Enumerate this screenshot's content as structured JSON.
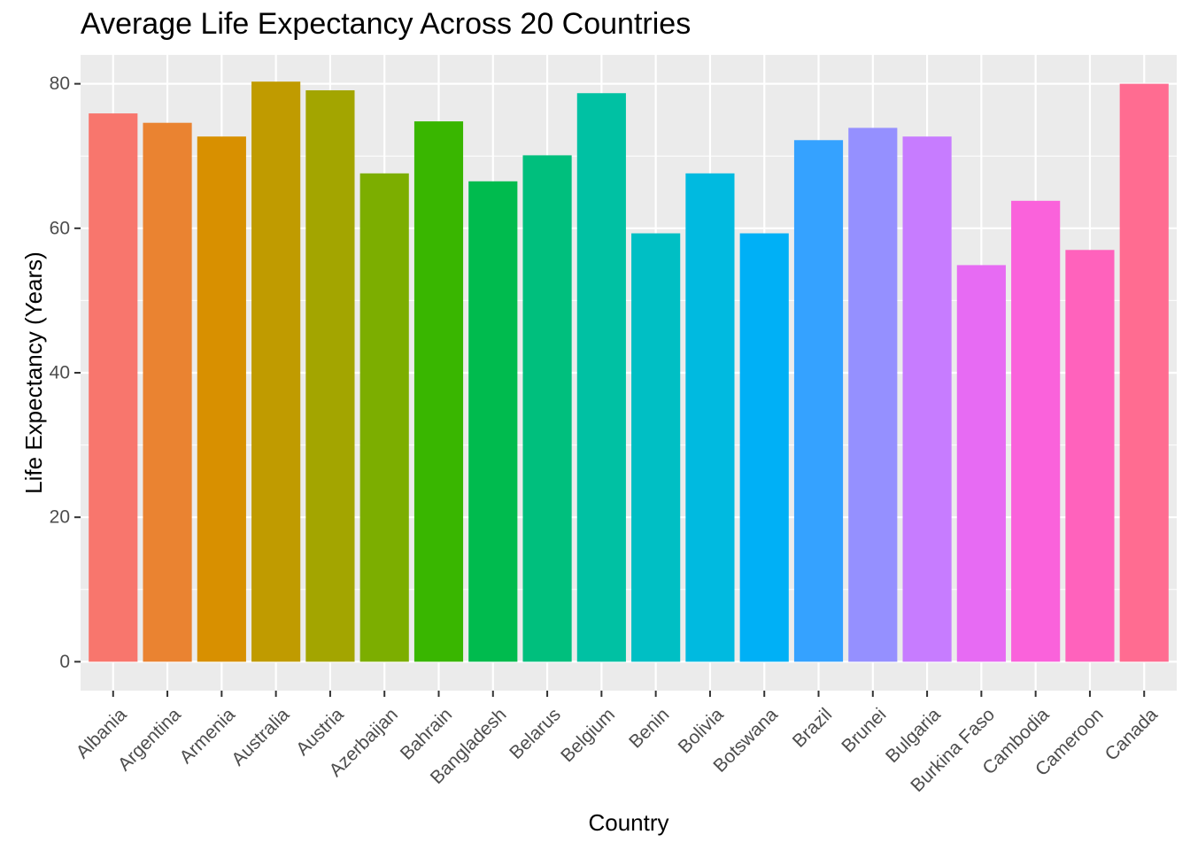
{
  "chart_data": {
    "type": "bar",
    "title": "Average Life Expectancy Across 20 Countries",
    "xlabel": "Country",
    "ylabel": "Life Expectancy (Years)",
    "ylim": [
      -4,
      84
    ],
    "yticks": [
      0,
      20,
      40,
      60,
      80
    ],
    "y_minor_ticks": [
      10,
      30,
      50,
      70
    ],
    "grid": true,
    "legend": "none",
    "background_color": "#ebebeb",
    "grid_color": "#ffffff",
    "categories": [
      "Albania",
      "Argentina",
      "Armenia",
      "Australia",
      "Austria",
      "Azerbaijan",
      "Bahrain",
      "Bangladesh",
      "Belarus",
      "Belgium",
      "Benin",
      "Bolivia",
      "Botswana",
      "Brazil",
      "Brunei",
      "Bulgaria",
      "Burkina Faso",
      "Cambodia",
      "Cameroon",
      "Canada"
    ],
    "values": [
      75.9,
      74.6,
      72.7,
      80.3,
      79.1,
      67.6,
      74.8,
      66.5,
      70.1,
      78.7,
      59.3,
      67.6,
      59.3,
      72.2,
      73.9,
      72.7,
      54.9,
      63.8,
      57.0,
      80.0
    ],
    "colors": [
      "#F8766D",
      "#EA8331",
      "#D89000",
      "#C09B00",
      "#A3A500",
      "#7CAE00",
      "#39B600",
      "#00BB4E",
      "#00BF7D",
      "#00C1A3",
      "#00BFC4",
      "#00BAE0",
      "#00B0F6",
      "#35A2FF",
      "#9590FF",
      "#C77CFF",
      "#E76BF3",
      "#FA62DB",
      "#FF62BC",
      "#FF6C91"
    ]
  }
}
